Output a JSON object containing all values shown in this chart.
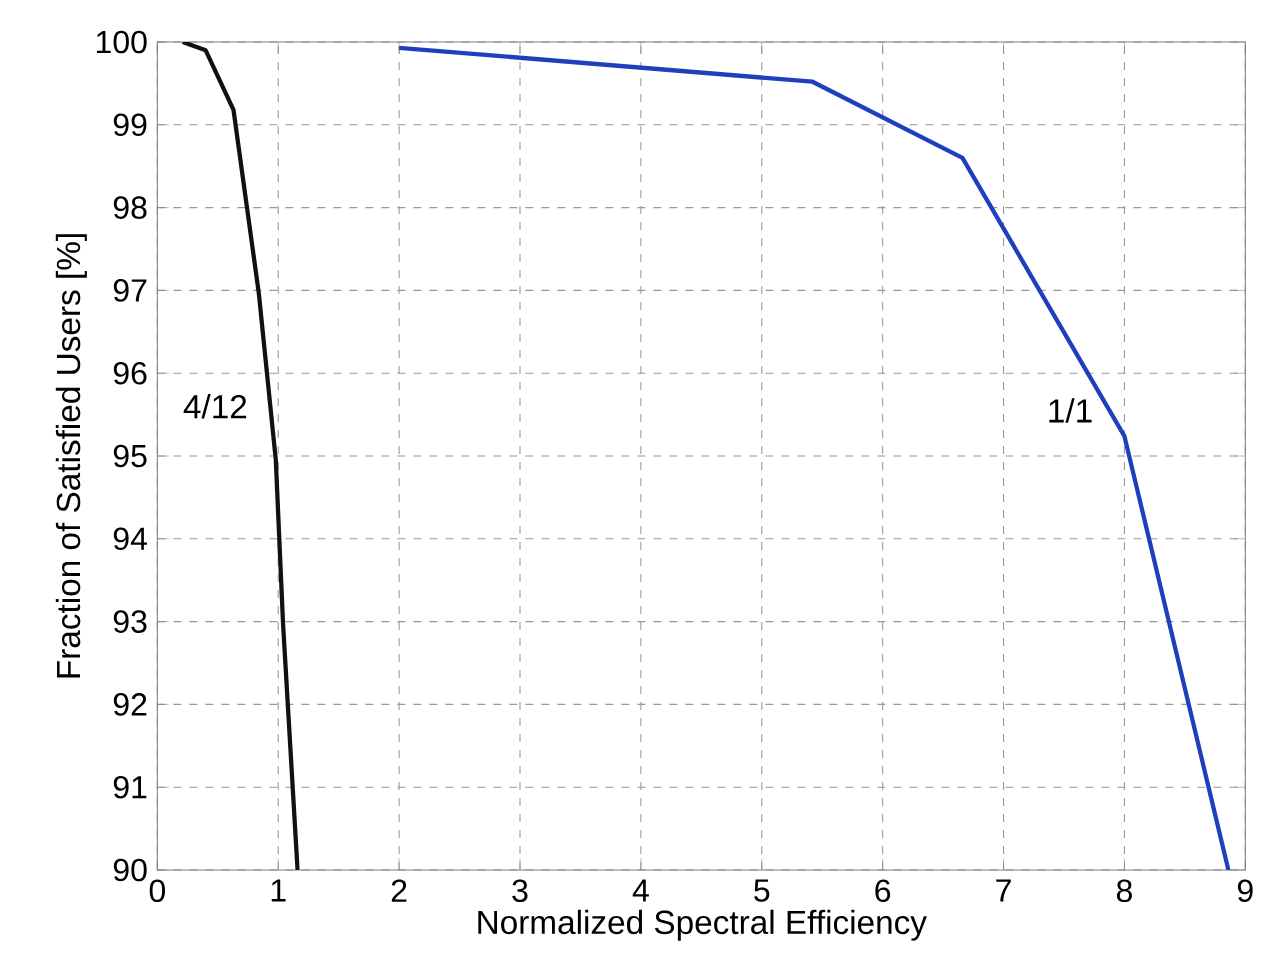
{
  "chart_data": {
    "type": "line",
    "xlabel": "Normalized Spectral Efficiency",
    "ylabel": "Fraction of Satisfied Users [%]",
    "xlim": [
      0,
      9
    ],
    "ylim": [
      90,
      100
    ],
    "xticks": [
      0,
      1,
      2,
      3,
      4,
      5,
      6,
      7,
      8,
      9
    ],
    "yticks": [
      90,
      91,
      92,
      93,
      94,
      95,
      96,
      97,
      98,
      99,
      100
    ],
    "grid": true,
    "marker": "none",
    "series": [
      {
        "name": "4/12",
        "color": "#111111",
        "x": [
          0.21,
          0.4,
          0.63,
          0.84,
          0.98,
          1.04,
          1.16
        ],
        "values": [
          100,
          99.9,
          99.18,
          96.96,
          94.95,
          92.97,
          90
        ]
      },
      {
        "name": "1/1",
        "color": "#1f3fbf",
        "x": [
          2.0,
          5.42,
          6.66,
          8.0,
          8.86
        ],
        "values": [
          99.93,
          99.52,
          98.6,
          95.24,
          90
        ]
      }
    ]
  }
}
